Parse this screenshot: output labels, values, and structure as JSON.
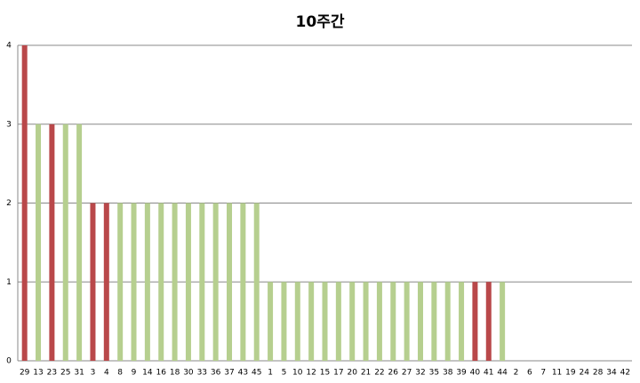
{
  "chart_data": {
    "type": "bar",
    "title": "10주간",
    "categories": [
      "29",
      "13",
      "23",
      "25",
      "31",
      "3",
      "4",
      "8",
      "9",
      "14",
      "16",
      "18",
      "30",
      "33",
      "36",
      "37",
      "43",
      "45",
      "1",
      "5",
      "10",
      "12",
      "15",
      "17",
      "20",
      "21",
      "22",
      "26",
      "27",
      "32",
      "35",
      "38",
      "39",
      "40",
      "41",
      "44",
      "2",
      "6",
      "7",
      "11",
      "19",
      "24",
      "28",
      "34",
      "42"
    ],
    "values": [
      4,
      3,
      3,
      3,
      3,
      2,
      2,
      2,
      2,
      2,
      2,
      2,
      2,
      2,
      2,
      2,
      2,
      2,
      1,
      1,
      1,
      1,
      1,
      1,
      1,
      1,
      1,
      1,
      1,
      1,
      1,
      1,
      1,
      1,
      1,
      1,
      0,
      0,
      0,
      0,
      0,
      0,
      0,
      0,
      0
    ],
    "colors": [
      "#b9484a",
      "#b6cf8f",
      "#b9484a",
      "#b6cf8f",
      "#b6cf8f",
      "#b9484a",
      "#b9484a",
      "#b6cf8f",
      "#b6cf8f",
      "#b6cf8f",
      "#b6cf8f",
      "#b6cf8f",
      "#b6cf8f",
      "#b6cf8f",
      "#b6cf8f",
      "#b6cf8f",
      "#b6cf8f",
      "#b6cf8f",
      "#b6cf8f",
      "#b6cf8f",
      "#b6cf8f",
      "#b6cf8f",
      "#b6cf8f",
      "#b6cf8f",
      "#b6cf8f",
      "#b6cf8f",
      "#b6cf8f",
      "#b6cf8f",
      "#b6cf8f",
      "#b6cf8f",
      "#b6cf8f",
      "#b6cf8f",
      "#b6cf8f",
      "#b9484a",
      "#b9484a",
      "#b6cf8f",
      "#b6cf8f",
      "#b6cf8f",
      "#b6cf8f",
      "#b6cf8f",
      "#b6cf8f",
      "#b6cf8f",
      "#b6cf8f",
      "#b6cf8f",
      "#b6cf8f"
    ],
    "ylim": [
      0,
      4
    ],
    "yticks": [
      0,
      1,
      2,
      3,
      4
    ],
    "grid": true
  }
}
